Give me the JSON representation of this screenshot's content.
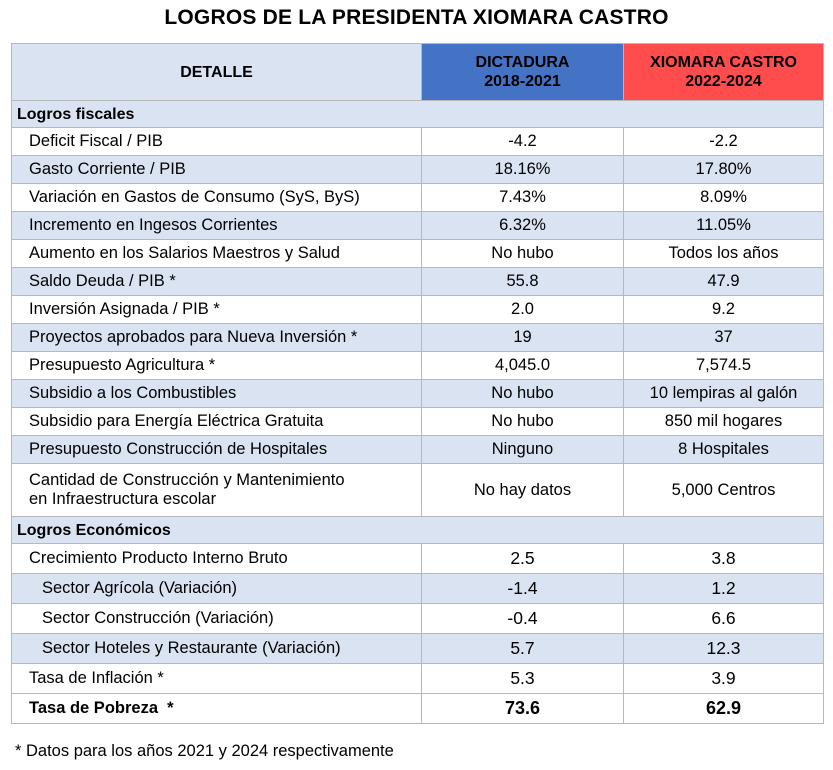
{
  "title": "LOGROS DE LA PRESIDENTA XIOMARA CASTRO",
  "header": {
    "detalle": "DETALLE",
    "col1_line1": "DICTADURA",
    "col1_line2": "2018-2021",
    "col2_line1": "XIOMARA CASTRO",
    "col2_line2": "2022-2024"
  },
  "colors": {
    "header_bg": "#dae3f1",
    "dictadura": "#4472c4",
    "xiomara": "#ff4c4c",
    "stripe": "#dae3f1"
  },
  "sections": [
    {
      "title": "Logros fiscales",
      "rows": [
        {
          "label": "Deficit Fiscal / PIB",
          "a": "-4.2",
          "b": "-2.2"
        },
        {
          "label": "Gasto Corriente / PIB",
          "a": "18.16%",
          "b": "17.80%"
        },
        {
          "label": "Variación en Gastos de Consumo (SyS, ByS)",
          "a": "7.43%",
          "b": "8.09%"
        },
        {
          "label": "Incremento en Ingesos Corrientes",
          "a": "6.32%",
          "b": "11.05%"
        },
        {
          "label": "Aumento en los Salarios Maestros y Salud",
          "a": "No hubo",
          "b": "Todos los años"
        },
        {
          "label": "Saldo Deuda / PIB *",
          "a": "55.8",
          "b": "47.9"
        },
        {
          "label": "Inversión Asignada / PIB *",
          "a": "2.0",
          "b": "9.2"
        },
        {
          "label": "Proyectos aprobados para Nueva Inversión *",
          "a": "19",
          "b": "37"
        },
        {
          "label": "Presupuesto Agricultura *",
          "a": "4,045.0",
          "b": "7,574.5"
        },
        {
          "label": "Subsidio a los Combustibles",
          "a": "No hubo",
          "b": "10 lempiras al galón"
        },
        {
          "label": "Subsidio para Energía Eléctrica Gratuita",
          "a": "No hubo",
          "b": "850 mil hogares"
        },
        {
          "label": "Presupuesto Construcción de Hospitales",
          "a": "Ninguno",
          "b": "8 Hospitales"
        },
        {
          "label_line1": "Cantidad de Construcción y Mantenimiento",
          "label_line2": "en Infraestructura escolar",
          "a": "No hay datos",
          "b": "5,000 Centros"
        }
      ]
    },
    {
      "title": "Logros Económicos",
      "rows": [
        {
          "label": "Crecimiento Producto Interno Bruto",
          "a": "2.5",
          "b": "3.8"
        },
        {
          "label": "Sector Agrícola (Variación)",
          "a": "-1.4",
          "b": "1.2"
        },
        {
          "label": "Sector Construcción (Variación)",
          "a": "-0.4",
          "b": "6.6"
        },
        {
          "label": "Sector Hoteles y Restaurante (Variación)",
          "a": "5.7",
          "b": "12.3"
        },
        {
          "label": "Tasa de Inflación *",
          "a": "5.3",
          "b": "3.9"
        },
        {
          "label": "Tasa de Pobreza  *",
          "a": "73.6",
          "b": "62.9"
        }
      ]
    }
  ],
  "footnote": "* Datos para los años 2021 y 2024 respectivamente"
}
